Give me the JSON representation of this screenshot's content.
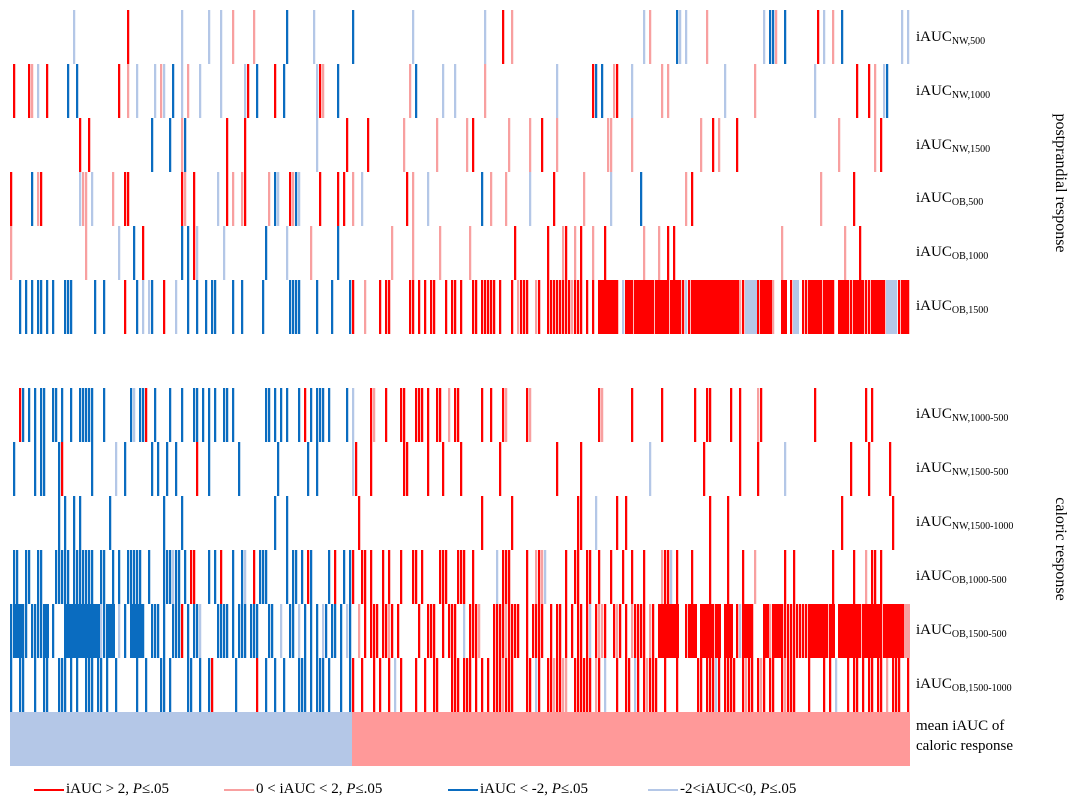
{
  "chart_data": {
    "type": "heatmap",
    "n_columns": 300,
    "colors": {
      "strong_positive": "#ff0000",
      "weak_positive": "#f8a0a0",
      "strong_negative": "#0a6cc0",
      "weak_negative": "#b4c7e7",
      "none": "#ffffff",
      "mean_negative": "#b4c7e7",
      "mean_positive": "#ff9999"
    },
    "groups": [
      {
        "label": "postprandial response",
        "rows": [
          {
            "sub": "NW,500",
            "profile": [
              0.12,
              0.1,
              0.15,
              0.12
            ],
            "mix": "mixed"
          },
          {
            "sub": "NW,1000",
            "profile": [
              0.3,
              0.15,
              0.1,
              0.1
            ],
            "mix": "mixed"
          },
          {
            "sub": "NW,1500",
            "profile": [
              0.08,
              0.15,
              0.12,
              0.1
            ],
            "mix": "posweak"
          },
          {
            "sub": "OB,500",
            "profile": [
              0.25,
              0.2,
              0.15,
              0.05
            ],
            "mix": "pos"
          },
          {
            "sub": "OB,1000",
            "profile": [
              0.1,
              0.1,
              0.12,
              0.12
            ],
            "mix": "posweak"
          },
          {
            "sub": "OB,1500",
            "profile": [
              0.25,
              0.25,
              0.75,
              0.92
            ],
            "mix": "trend"
          }
        ]
      },
      {
        "label": "caloric response",
        "rows": [
          {
            "sub": "NW,1000-500",
            "profile": [
              0.45,
              0.3,
              0.15,
              0.05
            ],
            "mix": "trend"
          },
          {
            "sub": "NW,1500-500",
            "profile": [
              0.2,
              0.15,
              0.12,
              0.05
            ],
            "mix": "trend"
          },
          {
            "sub": "NW,1500-1000",
            "profile": [
              0.05,
              0.05,
              0.08,
              0.03
            ],
            "mix": "trend"
          },
          {
            "sub": "OB,1000-500",
            "profile": [
              0.55,
              0.45,
              0.3,
              0.15
            ],
            "mix": "trend"
          },
          {
            "sub": "OB,1500-500",
            "profile": [
              0.85,
              0.5,
              0.65,
              0.97
            ],
            "mix": "trend"
          },
          {
            "sub": "OB,1500-1000",
            "profile": [
              0.4,
              0.3,
              0.6,
              0.7
            ],
            "mix": "trend"
          }
        ]
      }
    ],
    "mean_row": {
      "label_lines": [
        "mean iAUC of",
        "caloric response"
      ],
      "negative_fraction": 0.38,
      "positive_fraction": 0.62
    },
    "legend": [
      {
        "color": "#ff0000",
        "text_before": "iAUC > 2, ",
        "p": "P",
        "text_after": "≤.05"
      },
      {
        "color": "#f8a0a0",
        "text_before": "0 <  iAUC < 2, ",
        "p": "P",
        "text_after": "≤.05"
      },
      {
        "color": "#0a6cc0",
        "text_before": "iAUC < -2, ",
        "p": "P",
        "text_after": "≤.05"
      },
      {
        "color": "#b4c7e7",
        "text_before": "-2<iAUC<0, ",
        "p": "P",
        "text_after": "≤.05"
      }
    ]
  }
}
